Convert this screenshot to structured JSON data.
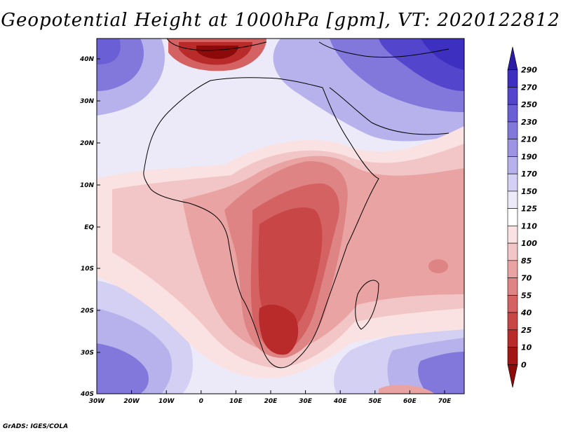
{
  "title": "Geopotential Height at 1000hPa [gpm], VT: 2020122812",
  "footer": "GrADS: IGES/COLA",
  "map": {
    "lon_range": [
      -30,
      75
    ],
    "lat_range": [
      -40,
      45
    ],
    "lon_ticks": [
      "30W",
      "20W",
      "10W",
      "0",
      "10E",
      "20E",
      "30E",
      "40E",
      "50E",
      "60E",
      "70E"
    ],
    "lat_ticks": [
      "40N",
      "30N",
      "20N",
      "10N",
      "EQ",
      "10S",
      "20S",
      "30S",
      "40S"
    ]
  },
  "colorbar": {
    "levels": [
      "290",
      "270",
      "250",
      "230",
      "210",
      "190",
      "170",
      "150",
      "125",
      "110",
      "100",
      "85",
      "70",
      "55",
      "40",
      "25",
      "10",
      "0"
    ],
    "colors": [
      "#2b1ca8",
      "#3d2fc0",
      "#5346cc",
      "#6a5fd5",
      "#8278dc",
      "#9d95e4",
      "#b7b2ec",
      "#d3d0f4",
      "#eceaf9",
      "#ffffff",
      "#fbe2e2",
      "#f2c6c6",
      "#e9a3a3",
      "#df8484",
      "#d46262",
      "#c84646",
      "#b92a2a",
      "#a31515",
      "#8c0a0a"
    ]
  }
}
